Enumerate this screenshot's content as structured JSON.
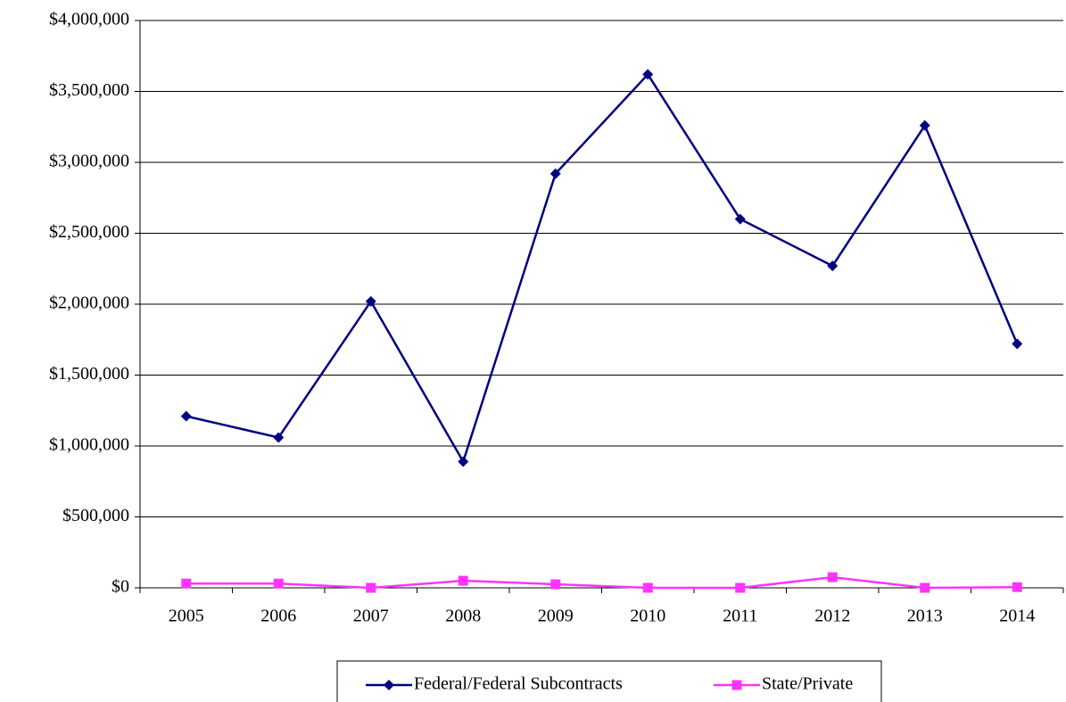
{
  "chart_data": {
    "type": "line",
    "categories": [
      "2005",
      "2006",
      "2007",
      "2008",
      "2009",
      "2010",
      "2011",
      "2012",
      "2013",
      "2014"
    ],
    "series": [
      {
        "name": "Federal/Federal Subcontracts",
        "color": "#000080",
        "marker": "diamond",
        "values": [
          1210000,
          1060000,
          2020000,
          890000,
          2920000,
          3620000,
          2600000,
          2270000,
          3260000,
          1720000
        ]
      },
      {
        "name": "State/Private",
        "color": "#ff33ff",
        "marker": "square",
        "values": [
          30000,
          30000,
          0,
          50000,
          25000,
          0,
          0,
          75000,
          0,
          5000
        ]
      }
    ],
    "ylim": [
      0,
      4000000
    ],
    "yticks": [
      {
        "value": 0,
        "label": "$0"
      },
      {
        "value": 500000,
        "label": "$500,000"
      },
      {
        "value": 1000000,
        "label": "$1,000,000"
      },
      {
        "value": 1500000,
        "label": "$1,500,000"
      },
      {
        "value": 2000000,
        "label": "$2,000,000"
      },
      {
        "value": 2500000,
        "label": "$2,500,000"
      },
      {
        "value": 3000000,
        "label": "$3,000,000"
      },
      {
        "value": 3500000,
        "label": "$3,500,000"
      },
      {
        "value": 4000000,
        "label": "$4,000,000"
      }
    ],
    "grid": true,
    "legend": "bottom"
  }
}
